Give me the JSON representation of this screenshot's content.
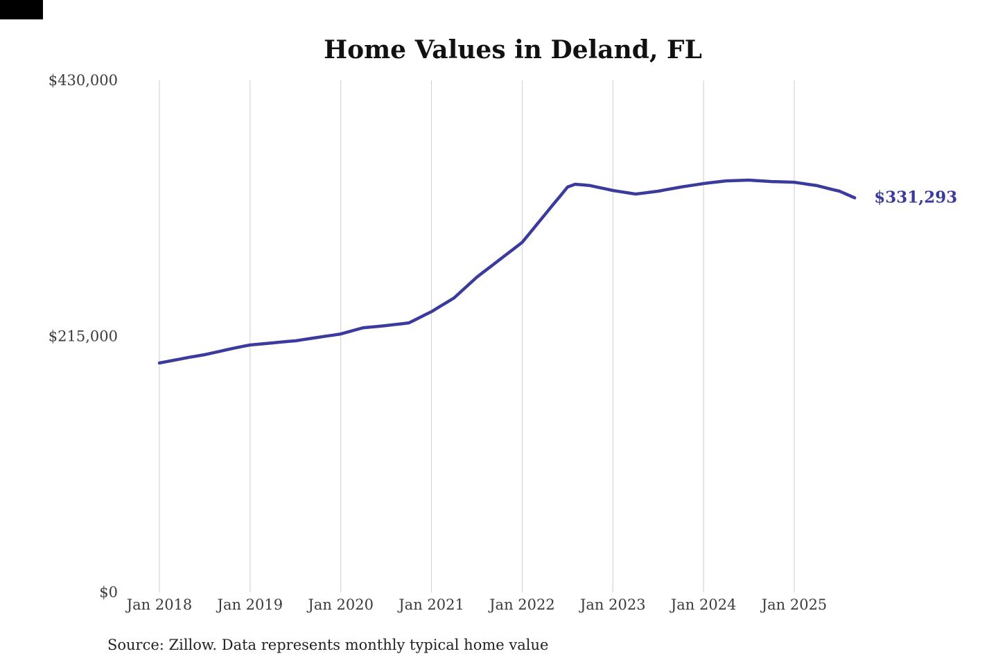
{
  "chart_data": {
    "type": "line",
    "title": "Home Values in Deland, FL",
    "source": "Source: Zillow. Data represents monthly typical home value",
    "interval": "monthly",
    "x_start": "2018-01",
    "x_end": "2025-09",
    "x_tick_labels": [
      "Jan 2018",
      "Jan 2019",
      "Jan 2020",
      "Jan 2021",
      "Jan 2022",
      "Jan 2023",
      "Jan 2024",
      "Jan 2025"
    ],
    "y_ticks": [
      {
        "label": "$0",
        "value": 0
      },
      {
        "label": "$215,000",
        "value": 215000
      },
      {
        "label": "$430,000",
        "value": 430000
      }
    ],
    "ylim": [
      0,
      430000
    ],
    "grid": "vertical-only",
    "legend": "none",
    "line_color": "#3b3b9d",
    "grid_color": "#cccccc",
    "annotation": {
      "text": "$331,293",
      "value": 331293,
      "position": "end-of-line"
    },
    "series": [
      {
        "name": "Typical home value",
        "values": [
          192600,
          193800,
          195000,
          196200,
          197400,
          198500,
          199600,
          201000,
          202400,
          203800,
          205200,
          206500,
          207700,
          208300,
          208900,
          209500,
          210100,
          210700,
          211200,
          212200,
          213200,
          214100,
          215100,
          216000,
          217000,
          218700,
          220500,
          222200,
          222800,
          223400,
          224000,
          224800,
          225500,
          226300,
          229400,
          232600,
          235700,
          239600,
          243400,
          247300,
          253100,
          258900,
          264700,
          269600,
          274400,
          279300,
          284200,
          289000,
          293900,
          301600,
          309400,
          317100,
          324900,
          332600,
          340400,
          342700,
          342200,
          341600,
          340200,
          338900,
          337500,
          336500,
          335500,
          334500,
          335300,
          336100,
          336900,
          338100,
          339200,
          340400,
          341400,
          342300,
          343300,
          344100,
          344800,
          345600,
          345800,
          346000,
          346200,
          345800,
          345400,
          345000,
          344800,
          344600,
          344400,
          343500,
          342500,
          341600,
          340000,
          338400,
          336900,
          334100,
          331293
        ]
      }
    ]
  }
}
